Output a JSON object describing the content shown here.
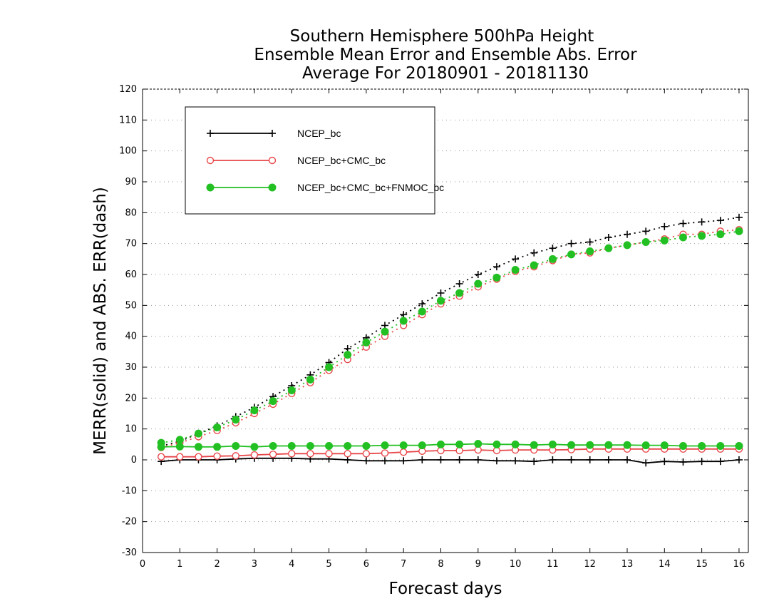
{
  "chart_data": {
    "type": "line",
    "title_lines": [
      "Southern Hemisphere 500hPa Height",
      "Ensemble Mean Error and Ensemble Abs. Error",
      "Average For 20180901 - 20181130"
    ],
    "xlabel": "Forecast days",
    "ylabel": "MERR(solid) and ABS. ERR(dash)",
    "xlim": [
      0,
      16.25
    ],
    "ylim": [
      -30,
      120
    ],
    "x_ticks": [
      "0",
      "1",
      "2",
      "3",
      "4",
      "5",
      "6",
      "7",
      "8",
      "9",
      "10",
      "11",
      "12",
      "13",
      "14",
      "15",
      "16"
    ],
    "y_ticks": [
      "-30",
      "-20",
      "-10",
      "0",
      "10",
      "20",
      "30",
      "40",
      "50",
      "60",
      "70",
      "80",
      "90",
      "100",
      "110",
      "120"
    ],
    "grid": "dotted-horizontal",
    "legend_position": "top-left",
    "x": [
      0.5,
      1,
      1.5,
      2,
      2.5,
      3,
      3.5,
      4,
      4.5,
      5,
      5.5,
      6,
      6.5,
      7,
      7.5,
      8,
      8.5,
      9,
      9.5,
      10,
      10.5,
      11,
      11.5,
      12,
      12.5,
      13,
      13.5,
      14,
      14.5,
      15,
      15.5,
      16
    ],
    "series": [
      {
        "name": "NCEP_bc",
        "color": "#000000",
        "marker": "plus",
        "merr": [
          -0.5,
          0,
          0,
          0,
          0.3,
          0.5,
          0.5,
          0.5,
          0.3,
          0.3,
          0,
          -0.3,
          -0.3,
          -0.3,
          0,
          0,
          0,
          0,
          -0.3,
          -0.3,
          -0.5,
          0,
          0,
          0,
          0,
          0,
          -1,
          -0.5,
          -0.7,
          -0.5,
          -0.5,
          0
        ],
        "abs_err": [
          4.5,
          6,
          8.5,
          11,
          14,
          17,
          20.5,
          24,
          27.5,
          31.5,
          36,
          39.5,
          43.5,
          47,
          50.5,
          54,
          57,
          60,
          62.5,
          65,
          67,
          68.5,
          70,
          70.5,
          72,
          73,
          74,
          75.5,
          76.5,
          77,
          77.5,
          78.5
        ]
      },
      {
        "name": "NCEP_bc+CMC_bc",
        "color": "#e8474a",
        "marker": "open-circle",
        "merr": [
          1,
          1,
          1,
          1.2,
          1.3,
          1.6,
          1.8,
          2,
          2,
          2,
          2,
          2,
          2.2,
          2.5,
          2.8,
          3,
          3,
          3.2,
          3,
          3.2,
          3.2,
          3.2,
          3.3,
          3.5,
          3.5,
          3.5,
          3.5,
          3.5,
          3.5,
          3.5,
          3.5,
          3.5
        ],
        "abs_err": [
          4,
          5.5,
          7.5,
          9.5,
          12,
          15,
          18,
          21.5,
          25,
          29,
          32.5,
          36.5,
          40,
          43.5,
          47,
          50.5,
          53,
          56,
          58.5,
          61,
          62.5,
          64.5,
          66.5,
          67,
          68.5,
          69.5,
          70.5,
          71.5,
          73,
          73,
          74,
          74.5
        ]
      },
      {
        "name": "NCEP_bc+CMC_bc+FNMOC_bc",
        "color": "#22c022",
        "marker": "filled-circle",
        "merr": [
          4.2,
          4.3,
          4.2,
          4.2,
          4.5,
          4.2,
          4.5,
          4.5,
          4.5,
          4.5,
          4.5,
          4.5,
          4.7,
          4.7,
          4.7,
          5,
          5,
          5.2,
          5,
          5,
          4.8,
          5,
          4.8,
          4.8,
          4.8,
          4.8,
          4.7,
          4.7,
          4.5,
          4.5,
          4.5,
          4.5
        ],
        "abs_err": [
          5.5,
          6.5,
          8.5,
          10.5,
          13,
          16,
          19,
          22.5,
          26,
          30,
          34,
          38,
          41.5,
          45,
          48,
          51.5,
          54,
          57,
          59,
          61.5,
          63,
          65,
          66.5,
          67.5,
          68.5,
          69.5,
          70.5,
          71,
          72,
          72.5,
          73,
          74
        ]
      }
    ]
  }
}
